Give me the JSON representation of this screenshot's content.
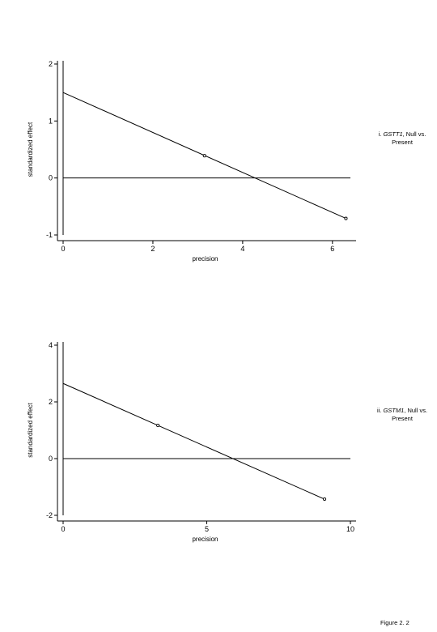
{
  "chart_data": [
    {
      "type": "scatter",
      "title": "",
      "xlabel": "precision",
      "ylabel": "standardized effect",
      "xlim": [
        0,
        6.4
      ],
      "ylim": [
        -1,
        2
      ],
      "x_ticks": [
        "0",
        "2",
        "4",
        "6"
      ],
      "y_ticks": [
        "-1",
        "0",
        "1",
        "2"
      ],
      "points": [
        {
          "x": 3.15,
          "y": 0.39
        },
        {
          "x": 6.3,
          "y": -0.71
        }
      ],
      "fit_line": {
        "x0": 0,
        "y0": 1.5,
        "x1": 6.3,
        "y1": -0.71
      },
      "reference_line_y": 0,
      "caption_parts": [
        "i. ",
        "GSTT1",
        ", Null vs. Present"
      ]
    },
    {
      "type": "scatter",
      "title": "",
      "xlabel": "precision",
      "ylabel": "standardized effect",
      "xlim": [
        0,
        10
      ],
      "ylim": [
        -2,
        4
      ],
      "x_ticks": [
        "0",
        "5",
        "10"
      ],
      "y_ticks": [
        "-2",
        "0",
        "2",
        "4"
      ],
      "points": [
        {
          "x": 3.3,
          "y": 1.17
        },
        {
          "x": 9.1,
          "y": -1.43
        }
      ],
      "fit_line": {
        "x0": 0,
        "y0": 2.65,
        "x1": 9.1,
        "y1": -1.43
      },
      "reference_line_y": 0,
      "caption_parts": [
        "ii. ",
        "GSTM1",
        ", Null vs. Present"
      ]
    }
  ],
  "figure_label": "Figure 2. 2"
}
